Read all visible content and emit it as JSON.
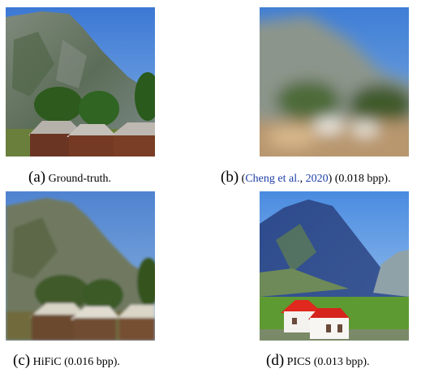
{
  "figure": {
    "panels": [
      {
        "tag": "(a)",
        "text": "Ground-truth."
      },
      {
        "tag": "(b)",
        "paren_open": "(",
        "link_a": "Cheng et al.",
        "comma": ", ",
        "link_b": "2020",
        "paren_close": ")",
        "rest": " (0.018 bpp)."
      },
      {
        "tag": "(c)",
        "text": "HiFiC (0.016 bpp)."
      },
      {
        "tag": "(d)",
        "text": "PICS (0.013 bpp)."
      }
    ]
  }
}
